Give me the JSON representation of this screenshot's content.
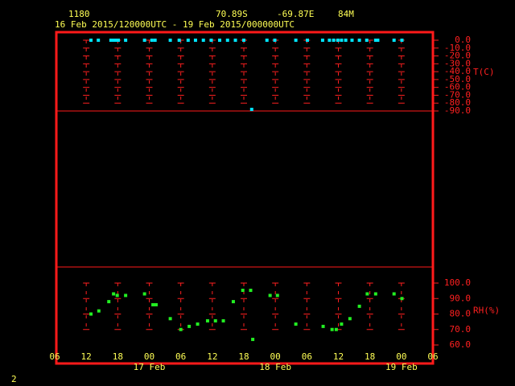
{
  "header": {
    "station": "1180",
    "lat": "70.89S",
    "lon": "-69.87E",
    "elev": "84M",
    "period": "16 Feb 2015/120000UTC - 19 Feb 2015/000000UTC",
    "page": "2"
  },
  "chart_data": [
    {
      "type": "scatter",
      "y_label": "T(C)",
      "color": "#00e5ff",
      "x": [
        12.9,
        14.3,
        16.7,
        17.2,
        17.6,
        18.1,
        19.5,
        23.1,
        24.5,
        25.1,
        28.0,
        29.7,
        31.4,
        32.8,
        34.3,
        35.8,
        37.4,
        38.9,
        40.4,
        42.0,
        43.5,
        46.4,
        47.9,
        51.9,
        54.1,
        57.0,
        58.3,
        59.1,
        59.9,
        60.6,
        61.4,
        62.6,
        64.0,
        65.4,
        67.1,
        67.5,
        70.6,
        72.1
      ],
      "values": [
        0,
        0,
        0,
        0,
        0,
        0,
        0,
        0,
        0,
        0,
        0,
        0,
        0,
        0,
        0,
        0,
        0,
        0,
        0,
        0,
        -88,
        0,
        0,
        0,
        0,
        0,
        0,
        0,
        0,
        0,
        0,
        0,
        0,
        0,
        0,
        0,
        0,
        0
      ],
      "xlim": [
        6,
        78
      ],
      "ylim": [
        -90,
        0
      ],
      "yticks": [
        {
          "value": 0,
          "label": "0.0"
        },
        {
          "value": -10,
          "label": "-10.0"
        },
        {
          "value": -20,
          "label": "-20.0"
        },
        {
          "value": -30,
          "label": "-30.0"
        },
        {
          "value": -40,
          "label": "-40.0"
        },
        {
          "value": -50,
          "label": "-50.0"
        },
        {
          "value": -60,
          "label": "-60.0"
        },
        {
          "value": -70,
          "label": "-70.0"
        },
        {
          "value": -80,
          "label": "-80.0"
        },
        {
          "value": -90,
          "label": "-90.0"
        }
      ]
    },
    {
      "type": "scatter",
      "y_label": "RH(%)",
      "color": "#22ee22",
      "x": [
        12.9,
        14.4,
        16.3,
        17.2,
        17.9,
        19.5,
        23.1,
        24.7,
        25.3,
        28.0,
        30.0,
        31.6,
        33.2,
        35.1,
        36.6,
        38.1,
        40.0,
        41.8,
        43.3,
        43.7,
        47.0,
        48.4,
        51.9,
        57.1,
        58.8,
        59.6,
        60.6,
        62.2,
        64.0,
        65.5,
        67.1,
        70.6,
        72.1
      ],
      "values": [
        80,
        82,
        88,
        93,
        92,
        92,
        93,
        86,
        86,
        77,
        70,
        72,
        73.5,
        75.6,
        75.6,
        75.6,
        88,
        95.3,
        95.3,
        63.6,
        92,
        92,
        73.5,
        72,
        70,
        70,
        73.5,
        77,
        85,
        93,
        93,
        93,
        90
      ],
      "xlim": [
        6,
        78
      ],
      "ylim": [
        60,
        100
      ],
      "yticks": [
        {
          "value": 100,
          "label": "100.0"
        },
        {
          "value": 90,
          "label": "90.0"
        },
        {
          "value": 80,
          "label": "80.0"
        },
        {
          "value": 70,
          "label": "70.0"
        },
        {
          "value": 60,
          "label": "60.0"
        }
      ],
      "xticks": [
        {
          "value": 6,
          "label": "06"
        },
        12,
        18,
        {
          "value": 24,
          "label": "00"
        },
        {
          "value": 30,
          "label": "06"
        },
        {
          "value": 36,
          "label": "12"
        },
        {
          "value": 42,
          "label": "18"
        },
        {
          "value": 48,
          "label": "00"
        },
        {
          "value": 54,
          "label": "06"
        },
        {
          "value": 60,
          "label": "12"
        },
        {
          "value": 66,
          "label": "18"
        },
        {
          "value": 72,
          "label": "00"
        },
        {
          "value": 78,
          "label": "06"
        }
      ],
      "xdate_labels": [
        {
          "value": 24,
          "label": "17 Feb"
        },
        {
          "value": 48,
          "label": "18 Feb"
        },
        {
          "value": 72,
          "label": "19 Feb"
        }
      ]
    }
  ]
}
